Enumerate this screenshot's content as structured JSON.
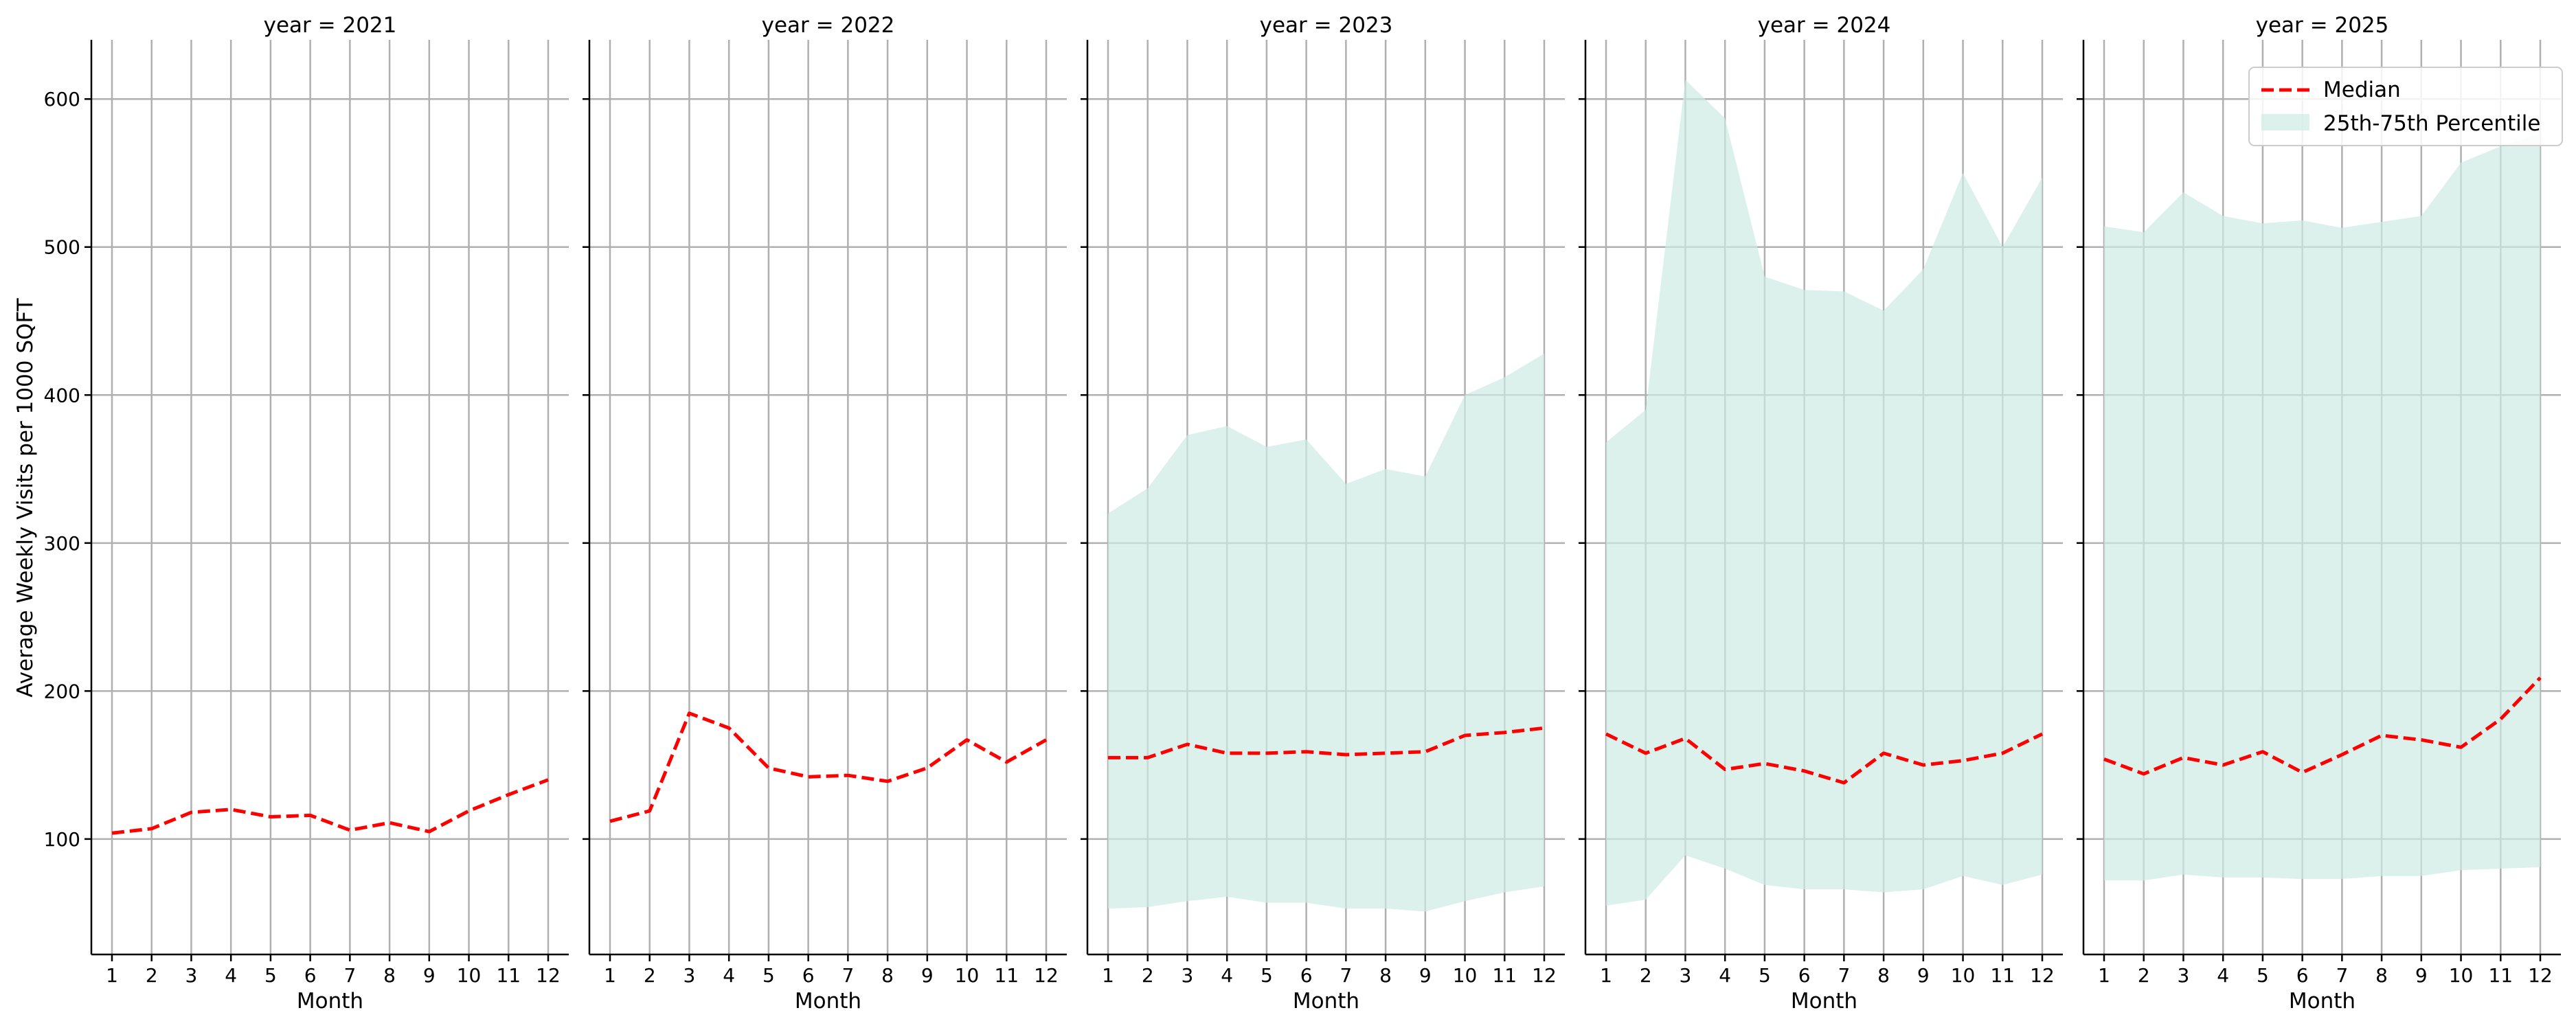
{
  "chart_data": {
    "type": "line",
    "ylabel": "Average Weekly Visits per 1000 SQFT",
    "xlabel": "Month",
    "x": [
      1,
      2,
      3,
      4,
      5,
      6,
      7,
      8,
      9,
      10,
      11,
      12
    ],
    "xticks": [
      "1",
      "2",
      "3",
      "4",
      "5",
      "6",
      "7",
      "8",
      "9",
      "10",
      "11",
      "12"
    ],
    "ylim": [
      22,
      640
    ],
    "yticks": [
      100,
      200,
      300,
      400,
      500,
      600
    ],
    "grid": true,
    "legend": {
      "position": "top-right",
      "median_label": "Median",
      "band_label": "25th-75th Percentile"
    },
    "colors": {
      "median": "#ff0000",
      "band": "#cdebe2",
      "grid": "#b0b0b0",
      "axis": "#000000"
    },
    "panels": [
      {
        "title": "year = 2021",
        "median": [
          104,
          107,
          118,
          120,
          115,
          116,
          106,
          111,
          105,
          119,
          130,
          140
        ],
        "p25": null,
        "p75": null
      },
      {
        "title": "year = 2022",
        "median": [
          112,
          119,
          185,
          175,
          148,
          142,
          143,
          139,
          148,
          167,
          152,
          167
        ],
        "p25": null,
        "p75": null
      },
      {
        "title": "year = 2023",
        "median": [
          155,
          155,
          164,
          158,
          158,
          159,
          157,
          158,
          159,
          170,
          172,
          175
        ],
        "p25": [
          53,
          54,
          58,
          61,
          57,
          57,
          53,
          53,
          51,
          58,
          64,
          68
        ],
        "p75": [
          320,
          337,
          373,
          379,
          365,
          370,
          340,
          350,
          345,
          400,
          412,
          428
        ]
      },
      {
        "title": "year = 2024",
        "median": [
          171,
          158,
          168,
          147,
          151,
          146,
          138,
          158,
          150,
          153,
          158,
          171
        ],
        "p25": [
          55,
          59,
          89,
          80,
          69,
          66,
          66,
          64,
          66,
          75,
          69,
          76
        ],
        "p75": [
          368,
          390,
          613,
          587,
          480,
          471,
          470,
          457,
          485,
          550,
          500,
          547
        ]
      },
      {
        "title": "year = 2025",
        "median": [
          154,
          144,
          155,
          150,
          159,
          145,
          157,
          170,
          167,
          162,
          181,
          209
        ],
        "p25": [
          72,
          72,
          76,
          74,
          74,
          73,
          73,
          75,
          75,
          79,
          80,
          81
        ],
        "p75": [
          514,
          510,
          537,
          521,
          516,
          518,
          513,
          517,
          521,
          557,
          568,
          577
        ]
      }
    ]
  }
}
